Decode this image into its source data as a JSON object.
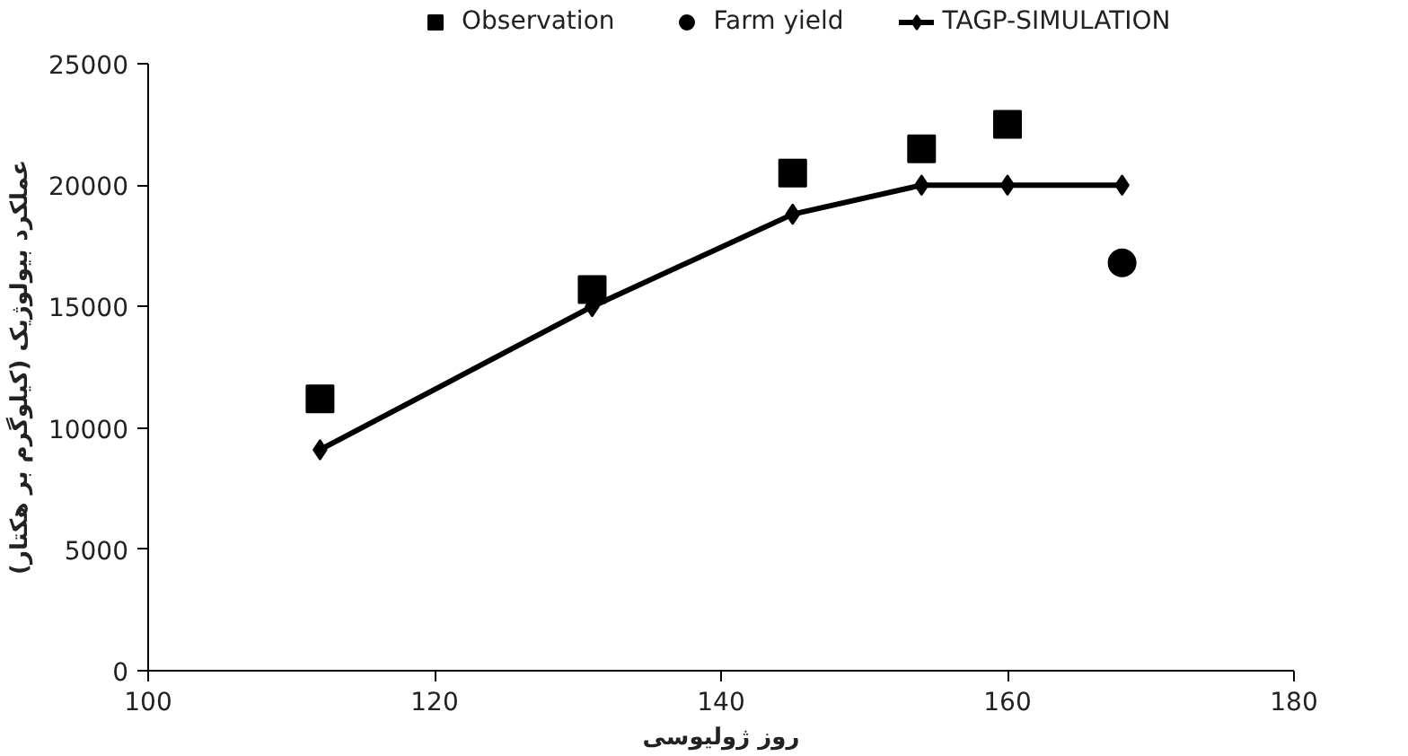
{
  "chart_data": {
    "type": "line",
    "xlabel": "روز ژولیوسی",
    "ylabel": "عملکرد بیولوژیک (کیلوگرم بر هکتار)",
    "xlim": [
      100,
      180
    ],
    "xticks": [
      100,
      120,
      140,
      160,
      180
    ],
    "ylim": [
      0,
      25000
    ],
    "yticks": [
      0,
      5000,
      10000,
      15000,
      20000,
      25000
    ],
    "grid": false,
    "legend": "top",
    "series": [
      {
        "name": "Observation",
        "type": "scatter",
        "marker": "square",
        "color": "#000000",
        "x": [
          112,
          131,
          145,
          154,
          160
        ],
        "values": [
          11200,
          15700,
          20500,
          21500,
          22500
        ]
      },
      {
        "name": "Farm yield",
        "type": "scatter",
        "marker": "circle",
        "color": "#000000",
        "x": [
          168
        ],
        "values": [
          16800
        ]
      },
      {
        "name": "TAGP-SIMULATION",
        "marker": "diamond",
        "line_style": "solid",
        "color": "#000000",
        "x": [
          112,
          131,
          145,
          154,
          160,
          168
        ],
        "values": [
          9100,
          15000,
          18800,
          20000,
          20000,
          20000
        ]
      }
    ]
  }
}
